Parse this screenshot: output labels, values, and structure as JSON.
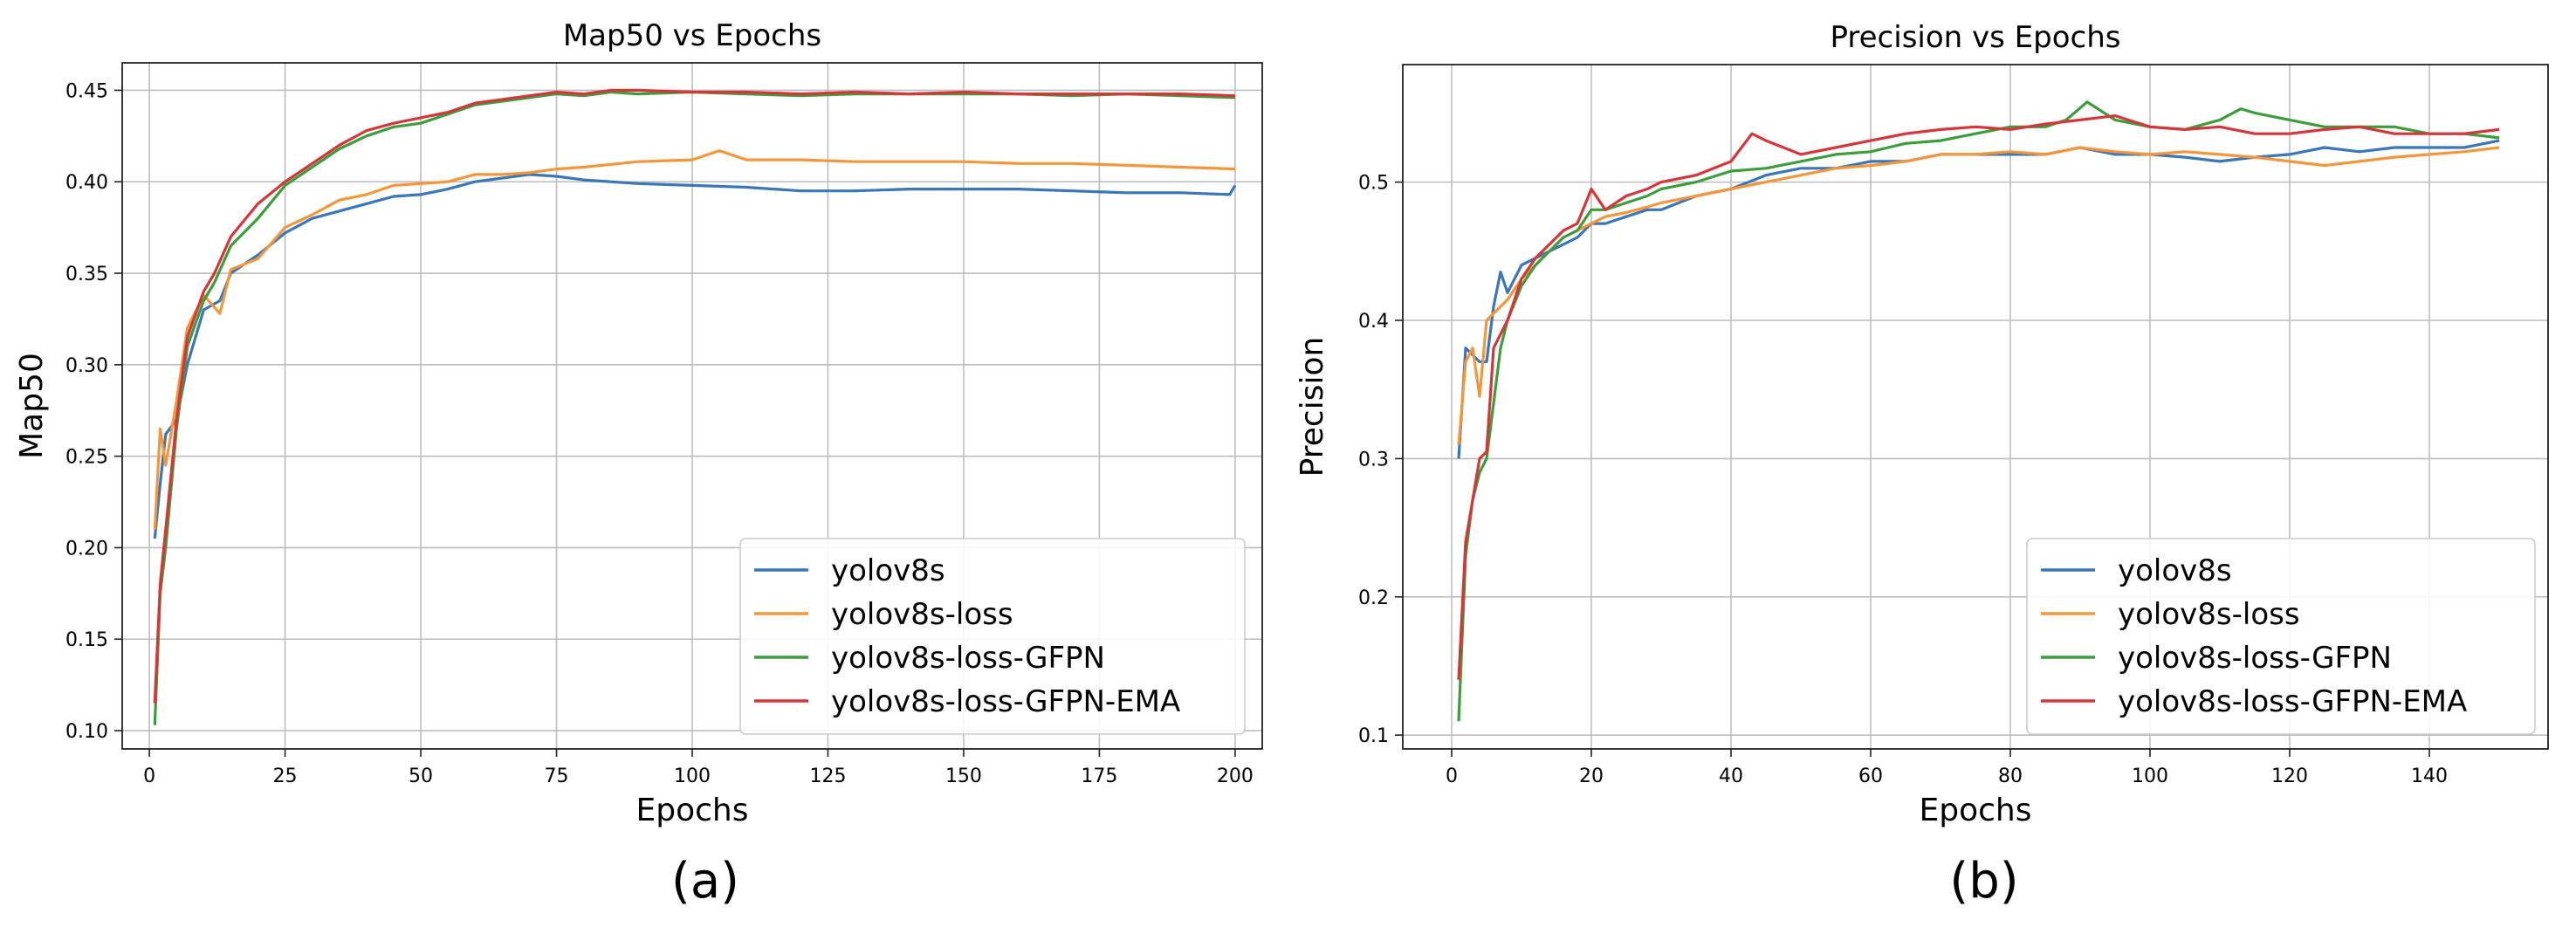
{
  "colors": {
    "yolov8s": "#3a76b8",
    "yolov8s-loss": "#f4973a",
    "yolov8s-loss-GFPN": "#3b9e3b",
    "yolov8s-loss-GFPN-EMA": "#d4363a",
    "grid": "#bdbdbd",
    "axes": "#222222"
  },
  "chart_data": [
    {
      "type": "line",
      "title": "Map50 vs Epochs",
      "xlabel": "Epochs",
      "ylabel": "Map50",
      "caption": "(a)",
      "xlim": [
        -5,
        205
      ],
      "ylim": [
        0.09,
        0.465
      ],
      "xticks": [
        0,
        25,
        50,
        75,
        100,
        125,
        150,
        175,
        200
      ],
      "yticks": [
        0.1,
        0.15,
        0.2,
        0.25,
        0.3,
        0.35,
        0.4,
        0.45
      ],
      "ytick_labels": [
        "0.10",
        "0.15",
        "0.20",
        "0.25",
        "0.30",
        "0.35",
        "0.40",
        "0.45"
      ],
      "grid": true,
      "legend_position": "lower-right",
      "legend": [
        "yolov8s",
        "yolov8s-loss",
        "yolov8s-loss-GFPN",
        "yolov8s-loss-GFPN-EMA"
      ],
      "series": [
        {
          "name": "yolov8s",
          "color_key": "yolov8s",
          "x": [
            1,
            2,
            3,
            5,
            7,
            10,
            13,
            15,
            20,
            25,
            30,
            35,
            40,
            45,
            50,
            55,
            60,
            65,
            70,
            75,
            80,
            90,
            100,
            110,
            120,
            130,
            140,
            150,
            160,
            170,
            180,
            190,
            199,
            200
          ],
          "y": [
            0.205,
            0.235,
            0.262,
            0.27,
            0.3,
            0.33,
            0.335,
            0.35,
            0.36,
            0.372,
            0.38,
            0.384,
            0.388,
            0.392,
            0.393,
            0.396,
            0.4,
            0.402,
            0.404,
            0.403,
            0.401,
            0.399,
            0.398,
            0.397,
            0.395,
            0.395,
            0.396,
            0.396,
            0.396,
            0.395,
            0.394,
            0.394,
            0.393,
            0.398
          ]
        },
        {
          "name": "yolov8s-loss",
          "color_key": "yolov8s-loss",
          "x": [
            1,
            2,
            3,
            5,
            7,
            10,
            13,
            15,
            20,
            25,
            30,
            35,
            40,
            45,
            50,
            55,
            60,
            65,
            70,
            75,
            80,
            90,
            100,
            105,
            110,
            120,
            130,
            140,
            150,
            160,
            170,
            180,
            190,
            200
          ],
          "y": [
            0.21,
            0.265,
            0.245,
            0.28,
            0.32,
            0.338,
            0.328,
            0.352,
            0.358,
            0.375,
            0.382,
            0.39,
            0.393,
            0.398,
            0.399,
            0.4,
            0.404,
            0.404,
            0.405,
            0.407,
            0.408,
            0.411,
            0.412,
            0.417,
            0.412,
            0.412,
            0.411,
            0.411,
            0.411,
            0.41,
            0.41,
            0.409,
            0.408,
            0.407
          ]
        },
        {
          "name": "yolov8s-loss-GFPN",
          "color_key": "yolov8s-loss-GFPN",
          "x": [
            1,
            2,
            3,
            5,
            7,
            10,
            12,
            15,
            20,
            25,
            30,
            35,
            40,
            45,
            50,
            55,
            60,
            65,
            70,
            75,
            80,
            85,
            90,
            100,
            110,
            120,
            130,
            140,
            150,
            160,
            170,
            180,
            190,
            200
          ],
          "y": [
            0.103,
            0.175,
            0.2,
            0.265,
            0.31,
            0.335,
            0.345,
            0.365,
            0.38,
            0.398,
            0.408,
            0.418,
            0.425,
            0.43,
            0.432,
            0.437,
            0.442,
            0.444,
            0.446,
            0.448,
            0.447,
            0.449,
            0.448,
            0.449,
            0.448,
            0.447,
            0.448,
            0.448,
            0.448,
            0.448,
            0.447,
            0.448,
            0.447,
            0.446
          ]
        },
        {
          "name": "yolov8s-loss-GFPN-EMA",
          "color_key": "yolov8s-loss-GFPN-EMA",
          "x": [
            1,
            2,
            3,
            5,
            7,
            10,
            12,
            15,
            20,
            25,
            30,
            35,
            40,
            45,
            50,
            55,
            60,
            65,
            70,
            75,
            80,
            85,
            90,
            100,
            110,
            120,
            130,
            140,
            150,
            160,
            170,
            180,
            190,
            200
          ],
          "y": [
            0.115,
            0.18,
            0.21,
            0.27,
            0.315,
            0.34,
            0.35,
            0.37,
            0.388,
            0.4,
            0.41,
            0.42,
            0.428,
            0.432,
            0.435,
            0.438,
            0.443,
            0.445,
            0.447,
            0.449,
            0.448,
            0.45,
            0.45,
            0.449,
            0.449,
            0.448,
            0.449,
            0.448,
            0.449,
            0.448,
            0.448,
            0.448,
            0.448,
            0.447
          ]
        }
      ]
    },
    {
      "type": "line",
      "title": "Precision  vs Epochs",
      "xlabel": "Epochs",
      "ylabel": "Precision",
      "caption": "(b)",
      "xlim": [
        -7,
        157
      ],
      "ylim": [
        0.09,
        0.585
      ],
      "xticks": [
        0,
        20,
        40,
        60,
        80,
        100,
        120,
        140
      ],
      "yticks": [
        0.1,
        0.2,
        0.3,
        0.4,
        0.5
      ],
      "ytick_labels": [
        "0.1",
        "0.2",
        "0.3",
        "0.4",
        "0.5"
      ],
      "grid": true,
      "legend_position": "lower-right",
      "legend": [
        "yolov8s",
        "yolov8s-loss",
        "yolov8s-loss-GFPN",
        "yolov8s-loss-GFPN-EMA"
      ],
      "series": [
        {
          "name": "yolov8s",
          "color_key": "yolov8s",
          "x": [
            1,
            2,
            3,
            4,
            5,
            6,
            7,
            8,
            10,
            12,
            14,
            16,
            18,
            20,
            22,
            25,
            28,
            30,
            35,
            40,
            45,
            50,
            55,
            60,
            65,
            70,
            75,
            80,
            85,
            90,
            95,
            100,
            105,
            110,
            115,
            120,
            125,
            130,
            135,
            140,
            145,
            150
          ],
          "y": [
            0.3,
            0.38,
            0.375,
            0.37,
            0.37,
            0.41,
            0.435,
            0.42,
            0.44,
            0.445,
            0.45,
            0.455,
            0.46,
            0.47,
            0.47,
            0.475,
            0.48,
            0.48,
            0.49,
            0.495,
            0.505,
            0.51,
            0.51,
            0.515,
            0.515,
            0.52,
            0.52,
            0.52,
            0.52,
            0.525,
            0.52,
            0.52,
            0.518,
            0.515,
            0.518,
            0.52,
            0.525,
            0.522,
            0.525,
            0.525,
            0.525,
            0.53
          ]
        },
        {
          "name": "yolov8s-loss",
          "color_key": "yolov8s-loss",
          "x": [
            1,
            2,
            3,
            4,
            5,
            6,
            7,
            8,
            10,
            12,
            14,
            16,
            18,
            20,
            22,
            25,
            28,
            30,
            35,
            40,
            45,
            50,
            55,
            60,
            65,
            70,
            75,
            80,
            85,
            90,
            95,
            100,
            105,
            110,
            115,
            120,
            125,
            130,
            135,
            140,
            145,
            150
          ],
          "y": [
            0.31,
            0.37,
            0.38,
            0.345,
            0.4,
            0.405,
            0.41,
            0.415,
            0.43,
            0.44,
            0.45,
            0.46,
            0.465,
            0.47,
            0.475,
            0.478,
            0.482,
            0.485,
            0.49,
            0.495,
            0.5,
            0.505,
            0.51,
            0.512,
            0.515,
            0.52,
            0.52,
            0.522,
            0.52,
            0.525,
            0.522,
            0.52,
            0.522,
            0.52,
            0.518,
            0.515,
            0.512,
            0.515,
            0.518,
            0.52,
            0.522,
            0.525
          ]
        },
        {
          "name": "yolov8s-loss-GFPN",
          "color_key": "yolov8s-loss-GFPN",
          "x": [
            1,
            2,
            3,
            4,
            5,
            6,
            7,
            8,
            10,
            12,
            14,
            16,
            18,
            20,
            22,
            25,
            28,
            30,
            35,
            40,
            45,
            50,
            55,
            60,
            65,
            70,
            75,
            80,
            85,
            88,
            91,
            95,
            100,
            105,
            110,
            113,
            115,
            120,
            125,
            130,
            135,
            140,
            145,
            150
          ],
          "y": [
            0.11,
            0.23,
            0.27,
            0.29,
            0.3,
            0.34,
            0.38,
            0.4,
            0.425,
            0.44,
            0.45,
            0.46,
            0.465,
            0.48,
            0.48,
            0.485,
            0.49,
            0.495,
            0.5,
            0.508,
            0.51,
            0.515,
            0.52,
            0.522,
            0.528,
            0.53,
            0.535,
            0.54,
            0.54,
            0.545,
            0.558,
            0.545,
            0.54,
            0.538,
            0.545,
            0.553,
            0.55,
            0.545,
            0.54,
            0.54,
            0.54,
            0.535,
            0.535,
            0.532
          ]
        },
        {
          "name": "yolov8s-loss-GFPN-EMA",
          "color_key": "yolov8s-loss-GFPN-EMA",
          "x": [
            1,
            2,
            3,
            4,
            5,
            6,
            7,
            8,
            10,
            12,
            14,
            16,
            18,
            20,
            22,
            25,
            28,
            30,
            35,
            40,
            43,
            45,
            50,
            55,
            60,
            65,
            70,
            75,
            80,
            85,
            90,
            95,
            100,
            105,
            110,
            115,
            120,
            125,
            130,
            135,
            140,
            145,
            150
          ],
          "y": [
            0.14,
            0.24,
            0.27,
            0.3,
            0.305,
            0.38,
            0.39,
            0.4,
            0.43,
            0.445,
            0.455,
            0.465,
            0.47,
            0.495,
            0.48,
            0.49,
            0.495,
            0.5,
            0.505,
            0.515,
            0.535,
            0.53,
            0.52,
            0.525,
            0.53,
            0.535,
            0.538,
            0.54,
            0.538,
            0.542,
            0.545,
            0.548,
            0.54,
            0.538,
            0.54,
            0.535,
            0.535,
            0.538,
            0.54,
            0.535,
            0.535,
            0.535,
            0.538
          ]
        }
      ]
    }
  ]
}
